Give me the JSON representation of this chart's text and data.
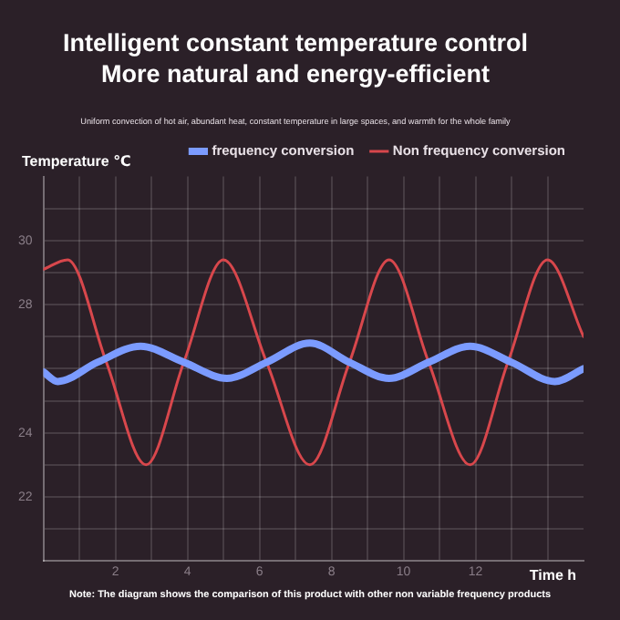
{
  "chart_data": {
    "type": "line",
    "title": "Intelligent constant temperature control\nMore natural and energy-efficient",
    "subtitle": "Uniform convection of hot air, abundant heat, constant temperature in large spaces, and warmth for the whole family",
    "xlabel": "Time h",
    "ylabel": "Temperature ℃",
    "annotations": [
      "Note: The diagram shows the comparison of this product with other non variable frequency products"
    ],
    "xlim": [
      0,
      15
    ],
    "ylim": [
      20,
      32
    ],
    "xticks": [
      {
        "value": 1,
        "label": null
      },
      2,
      {
        "value": 3,
        "label": null
      },
      4,
      {
        "value": 5,
        "label": null
      },
      6,
      {
        "value": 7,
        "label": null
      },
      8,
      {
        "value": 9,
        "label": null
      },
      10,
      {
        "value": 11,
        "label": null
      },
      12,
      {
        "value": 13,
        "label": null
      },
      {
        "value": 14,
        "label": null
      }
    ],
    "yticks": [
      {
        "value": 21,
        "label": null
      },
      22,
      {
        "value": 23,
        "label": null
      },
      24,
      {
        "value": 25,
        "label": null
      },
      {
        "value": 26,
        "label": null
      },
      {
        "value": 27,
        "label": null
      },
      28,
      {
        "value": 29,
        "label": null
      },
      30,
      {
        "value": 31,
        "label": null
      }
    ],
    "grid": true,
    "legend": "top right",
    "marker": "none",
    "line_style": "solid",
    "series": [
      {
        "name": "frequency conversion",
        "color": "#7b9bff",
        "x": [
          0,
          0.4,
          1.5,
          2.7,
          3.9,
          5.1,
          6.2,
          7.4,
          8.5,
          9.6,
          10.7,
          11.85,
          13,
          14.2,
          15
        ],
        "values": [
          25.9,
          25.6,
          26.2,
          26.7,
          26.2,
          25.7,
          26.2,
          26.8,
          26.2,
          25.7,
          26.2,
          26.7,
          26.2,
          25.6,
          26
        ]
      },
      {
        "name": "Non frequency conversion",
        "color": "#d8474c",
        "x": [
          0,
          0.67,
          1.75,
          2.85,
          3.9,
          5,
          6.2,
          7.4,
          8.5,
          9.6,
          10.7,
          11.85,
          12.9,
          14,
          15
        ],
        "values": [
          29.1,
          29.4,
          26.2,
          23,
          26.2,
          29.4,
          26.2,
          23,
          26.2,
          29.4,
          26.2,
          23,
          26.2,
          29.4,
          27
        ]
      }
    ]
  }
}
